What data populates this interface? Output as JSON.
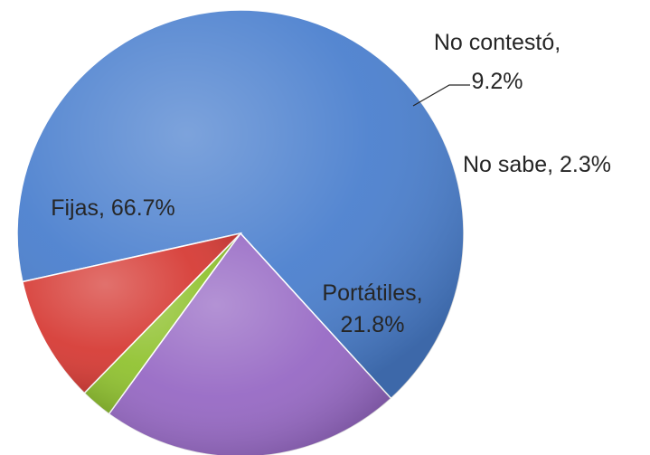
{
  "chart_data": {
    "type": "pie",
    "title": "",
    "slices": [
      {
        "name": "Fijas",
        "value": 66.7,
        "label_line1": "Fijas, 66.7%",
        "label_line2": "",
        "color": "#4a7fce"
      },
      {
        "name": "Portátiles",
        "value": 21.8,
        "label_line1": "Portátiles,",
        "label_line2": "21.8%",
        "color": "#9668c4"
      },
      {
        "name": "No sabe",
        "value": 2.3,
        "label_line1": "No sabe, 2.3%",
        "label_line2": "",
        "color": "#90c22f"
      },
      {
        "name": "No contestó",
        "value": 9.2,
        "label_line1": "No contestó,",
        "label_line2": "9.2%",
        "color": "#d63a34"
      }
    ],
    "legend": "none",
    "label_position": "mixed"
  }
}
